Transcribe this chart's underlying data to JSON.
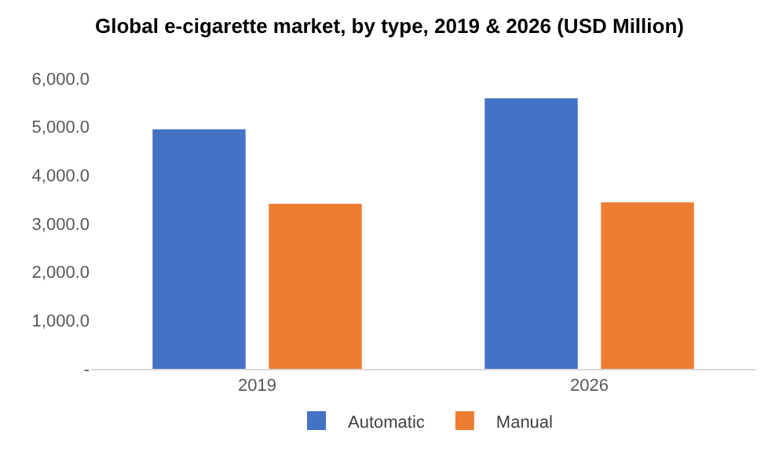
{
  "chart_data": {
    "type": "bar",
    "title": "Global e-cigarette market, by type, 2019 & 2026 (USD Million)",
    "categories": [
      "2019",
      "2026"
    ],
    "series": [
      {
        "name": "Automatic",
        "color": "#4472c4",
        "values": [
          4950,
          5590
        ]
      },
      {
        "name": "Manual",
        "color": "#ed7d31",
        "values": [
          3410,
          3440
        ]
      }
    ],
    "ylim": [
      0,
      6000
    ],
    "yticks": [
      {
        "value": 0,
        "label": "-"
      },
      {
        "value": 1000,
        "label": "1,000.0"
      },
      {
        "value": 2000,
        "label": "2,000.0"
      },
      {
        "value": 3000,
        "label": "3,000.0"
      },
      {
        "value": 4000,
        "label": "4,000.0"
      },
      {
        "value": 5000,
        "label": "5,000.0"
      },
      {
        "value": 6000,
        "label": "6,000.0"
      }
    ],
    "grid": false,
    "legend": "bottom"
  }
}
